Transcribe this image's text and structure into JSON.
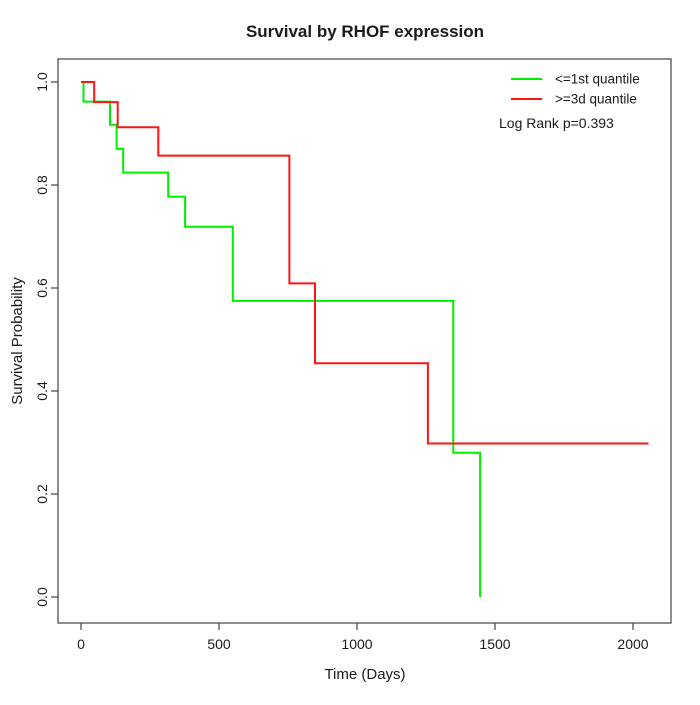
{
  "chart_data": {
    "type": "line",
    "subtype": "kaplan-meier-step-curve",
    "title": "Survival by RHOF expression",
    "xlabel": "Time (Days)",
    "ylabel": "Survival Probability",
    "xlim": [
      0,
      2070
    ],
    "ylim": [
      0.0,
      1.0
    ],
    "x_ticks": [
      0,
      500,
      1000,
      1500,
      2000
    ],
    "x_tick_labels": [
      "0",
      "500",
      "1000",
      "1500",
      "2000"
    ],
    "y_ticks": [
      0.0,
      0.2,
      0.4,
      0.6,
      0.8,
      1.0
    ],
    "y_tick_labels": [
      "0.0",
      "0.2",
      "0.4",
      "0.6",
      "0.8",
      "1.0"
    ],
    "grid": false,
    "legend_position": "top-right-inside",
    "annotation": "Log Rank p=0.393",
    "series": [
      {
        "name": "le-1st-quantile",
        "label": "<=1st quantile",
        "color": "#00ee00",
        "start": {
          "t": 0,
          "p": 1.0
        },
        "steps": [
          {
            "t": 9,
            "p": 0.962
          },
          {
            "t": 105,
            "p": 0.917
          },
          {
            "t": 129,
            "p": 0.87
          },
          {
            "t": 153,
            "p": 0.824
          },
          {
            "t": 316,
            "p": 0.777
          },
          {
            "t": 377,
            "p": 0.719
          },
          {
            "t": 550,
            "p": 0.575
          },
          {
            "t": 1349,
            "p": 0.28
          },
          {
            "t": 1446,
            "p": 0.0
          }
        ],
        "end_t": 1446
      },
      {
        "name": "ge-3d-quantile",
        "label": ">=3d quantile",
        "color": "#ff1414",
        "start": {
          "t": 0,
          "p": 1.0
        },
        "steps": [
          {
            "t": 48,
            "p": 0.961
          },
          {
            "t": 133,
            "p": 0.912
          },
          {
            "t": 280,
            "p": 0.857
          },
          {
            "t": 755,
            "p": 0.609
          },
          {
            "t": 848,
            "p": 0.454
          },
          {
            "t": 1257,
            "p": 0.298
          }
        ],
        "end_t": 2056
      }
    ]
  }
}
